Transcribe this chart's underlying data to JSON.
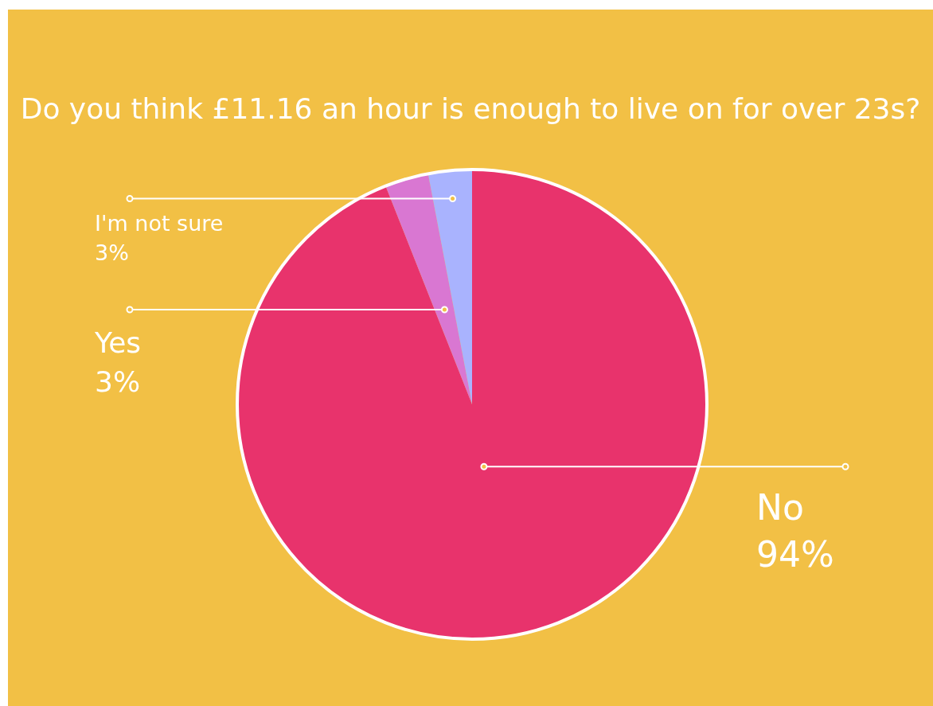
{
  "chart_data": {
    "type": "pie",
    "title": "Do you think £11.16 an hour is enough to live on for over 23s?",
    "categories": [
      "No",
      "Yes",
      "I'm not sure"
    ],
    "values": [
      94,
      3,
      3
    ],
    "value_labels": [
      "94%",
      "3%",
      "3%"
    ],
    "colors": [
      "#e8336c",
      "#d977d2",
      "#a9b3fe"
    ],
    "legend": false
  }
}
